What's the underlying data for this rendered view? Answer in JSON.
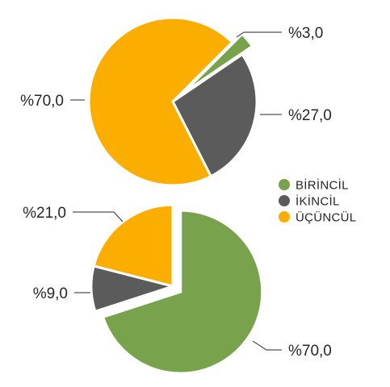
{
  "chart_data": [
    {
      "type": "pie",
      "categories": [
        "BİRİNCİL",
        "İKİNCİL",
        "ÜÇÜNCÜL"
      ],
      "values": [
        3.0,
        27.0,
        70.0
      ],
      "labels": [
        "%3,0",
        "%27,0",
        "%70,0"
      ],
      "colors": [
        "#78a24c",
        "#5b5b5b",
        "#fbad00"
      ],
      "exploded": true,
      "start_angle_deg": 45
    },
    {
      "type": "pie",
      "categories": [
        "BİRİNCİL",
        "İKİNCİL",
        "ÜÇÜNCÜL"
      ],
      "values": [
        70.0,
        9.0,
        21.0
      ],
      "labels": [
        "%70,0",
        "%9,0",
        "%21,0"
      ],
      "colors": [
        "#78a24c",
        "#5b5b5b",
        "#fbad00"
      ],
      "exploded": true,
      "start_angle_deg": 0
    }
  ],
  "legend": {
    "placement": "right",
    "items": [
      {
        "label": "BİRİNCİL",
        "color": "#78a24c"
      },
      {
        "label": "İKİNCİL",
        "color": "#5b5b5b"
      },
      {
        "label": "ÜÇÜNCÜL",
        "color": "#fbad00"
      }
    ]
  }
}
